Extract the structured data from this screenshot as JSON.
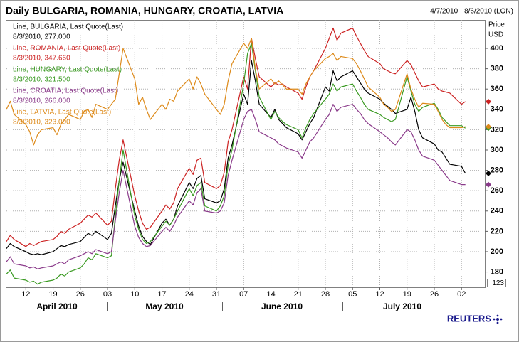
{
  "chart_data": {
    "type": "line",
    "title": "Daily BULGARIA, ROMANIA, HUNGARY, CROATIA, LATVIA",
    "subtitle": "4/7/2010 - 8/6/2010 (LON)",
    "y_axis_label": [
      "Price",
      "USD"
    ],
    "month_labels": [
      "April 2010",
      "May 2010",
      "June 2010",
      "July 2010"
    ],
    "badge": "123",
    "brand": "REUTERS",
    "grid": true,
    "xlim": [
      "2010-04-07",
      "2010-08-08"
    ],
    "ylim": [
      165,
      428
    ],
    "yticks": [
      180,
      200,
      220,
      240,
      260,
      280,
      300,
      320,
      340,
      360,
      380,
      400
    ],
    "xticks": [
      {
        "value": "2010-04-12",
        "label": "12"
      },
      {
        "value": "2010-04-19",
        "label": "19"
      },
      {
        "value": "2010-04-26",
        "label": "26"
      },
      {
        "value": "2010-05-03",
        "label": "03"
      },
      {
        "value": "2010-05-10",
        "label": "10"
      },
      {
        "value": "2010-05-17",
        "label": "17"
      },
      {
        "value": "2010-05-24",
        "label": "24"
      },
      {
        "value": "2010-05-31",
        "label": "31"
      },
      {
        "value": "2010-06-07",
        "label": "07"
      },
      {
        "value": "2010-06-14",
        "label": "14"
      },
      {
        "value": "2010-06-21",
        "label": "21"
      },
      {
        "value": "2010-06-28",
        "label": "28"
      },
      {
        "value": "2010-07-05",
        "label": "05"
      },
      {
        "value": "2010-07-12",
        "label": "12"
      },
      {
        "value": "2010-07-19",
        "label": "19"
      },
      {
        "value": "2010-07-26",
        "label": "26"
      },
      {
        "value": "2010-08-02",
        "label": "02"
      }
    ],
    "x": [
      "2010-04-07",
      "2010-04-08",
      "2010-04-09",
      "2010-04-12",
      "2010-04-13",
      "2010-04-14",
      "2010-04-15",
      "2010-04-16",
      "2010-04-19",
      "2010-04-20",
      "2010-04-21",
      "2010-04-22",
      "2010-04-23",
      "2010-04-26",
      "2010-04-27",
      "2010-04-28",
      "2010-04-29",
      "2010-04-30",
      "2010-05-03",
      "2010-05-04",
      "2010-05-05",
      "2010-05-06",
      "2010-05-07",
      "2010-05-10",
      "2010-05-11",
      "2010-05-12",
      "2010-05-13",
      "2010-05-14",
      "2010-05-17",
      "2010-05-18",
      "2010-05-19",
      "2010-05-20",
      "2010-05-21",
      "2010-05-24",
      "2010-05-25",
      "2010-05-26",
      "2010-05-27",
      "2010-05-28",
      "2010-05-31",
      "2010-06-01",
      "2010-06-02",
      "2010-06-03",
      "2010-06-04",
      "2010-06-07",
      "2010-06-08",
      "2010-06-09",
      "2010-06-10",
      "2010-06-11",
      "2010-06-14",
      "2010-06-15",
      "2010-06-16",
      "2010-06-17",
      "2010-06-18",
      "2010-06-21",
      "2010-06-22",
      "2010-06-23",
      "2010-06-24",
      "2010-06-25",
      "2010-06-28",
      "2010-06-29",
      "2010-06-30",
      "2010-07-01",
      "2010-07-02",
      "2010-07-05",
      "2010-07-06",
      "2010-07-07",
      "2010-07-08",
      "2010-07-09",
      "2010-07-12",
      "2010-07-13",
      "2010-07-14",
      "2010-07-15",
      "2010-07-16",
      "2010-07-19",
      "2010-07-20",
      "2010-07-21",
      "2010-07-22",
      "2010-07-23",
      "2010-07-26",
      "2010-07-27",
      "2010-07-28",
      "2010-07-29",
      "2010-07-30",
      "2010-08-02",
      "2010-08-03"
    ],
    "series": [
      {
        "name": "Line, BULGARIA, Last Quote(Last)",
        "legend_detail": "8/3/2010, 277.000",
        "color": "#000000",
        "values": [
          203,
          208,
          205,
          200,
          198,
          197,
          198,
          197,
          200,
          203,
          206,
          205,
          207,
          210,
          214,
          218,
          216,
          220,
          212,
          218,
          245,
          270,
          288,
          240,
          225,
          215,
          210,
          207,
          228,
          232,
          226,
          232,
          245,
          268,
          262,
          272,
          275,
          252,
          248,
          250,
          262,
          292,
          305,
          355,
          345,
          388,
          368,
          345,
          332,
          340,
          330,
          326,
          322,
          316,
          310,
          318,
          326,
          332,
          362,
          358,
          378,
          368,
          372,
          378,
          372,
          366,
          360,
          356,
          350,
          346,
          343,
          340,
          336,
          340,
          352,
          338,
          320,
          312,
          306,
          300,
          298,
          292,
          286,
          284,
          277
        ]
      },
      {
        "name": "Line, ROMANIA, Last Quote(Last)",
        "legend_detail": "8/3/2010, 347.660",
        "color": "#cc2222",
        "values": [
          210,
          216,
          212,
          205,
          208,
          206,
          208,
          210,
          212,
          215,
          220,
          218,
          222,
          228,
          232,
          236,
          234,
          238,
          226,
          230,
          262,
          290,
          310,
          255,
          240,
          228,
          222,
          224,
          240,
          246,
          242,
          248,
          262,
          282,
          276,
          290,
          292,
          268,
          262,
          265,
          278,
          308,
          320,
          372,
          360,
          410,
          390,
          372,
          362,
          366,
          364,
          365,
          362,
          356,
          350,
          362,
          372,
          378,
          400,
          410,
          420,
          408,
          415,
          420,
          412,
          405,
          398,
          392,
          385,
          380,
          378,
          376,
          375,
          388,
          384,
          376,
          368,
          362,
          365,
          360,
          358,
          357,
          356,
          345,
          347.66
        ]
      },
      {
        "name": "Line, HUNGARY, Last Quote(Last)",
        "legend_detail": "8/3/2010, 321.500",
        "color": "#3a9a22",
        "values": [
          178,
          182,
          174,
          172,
          170,
          171,
          168,
          170,
          172,
          174,
          178,
          176,
          180,
          184,
          188,
          194,
          192,
          198,
          194,
          196,
          235,
          270,
          300,
          235,
          222,
          212,
          208,
          210,
          225,
          230,
          226,
          232,
          240,
          262,
          255,
          265,
          268,
          245,
          240,
          245,
          255,
          285,
          300,
          365,
          395,
          405,
          378,
          352,
          330,
          338,
          332,
          328,
          325,
          320,
          312,
          322,
          330,
          336,
          350,
          355,
          365,
          358,
          362,
          365,
          358,
          352,
          345,
          340,
          335,
          332,
          330,
          328,
          330,
          372,
          358,
          345,
          338,
          342,
          346,
          340,
          332,
          328,
          324,
          324,
          321.5
        ]
      },
      {
        "name": "Line, CROATIA, Last Quote(Last)",
        "legend_detail": "8/3/2010, 266.000",
        "color": "#8a3a8a",
        "values": [
          190,
          195,
          188,
          186,
          184,
          185,
          183,
          184,
          186,
          188,
          190,
          188,
          192,
          196,
          198,
          200,
          198,
          202,
          198,
          200,
          230,
          258,
          280,
          225,
          214,
          208,
          205,
          206,
          220,
          224,
          220,
          226,
          234,
          250,
          246,
          258,
          262,
          240,
          238,
          240,
          248,
          275,
          290,
          330,
          338,
          340,
          330,
          318,
          312,
          310,
          306,
          304,
          302,
          298,
          292,
          300,
          308,
          312,
          330,
          335,
          345,
          338,
          342,
          345,
          340,
          336,
          330,
          326,
          318,
          315,
          312,
          308,
          305,
          320,
          318,
          310,
          300,
          294,
          290,
          285,
          280,
          275,
          270,
          266,
          266
        ]
      },
      {
        "name": "Line, LATVIA, Last Quote(Last)",
        "legend_detail": "8/3/2010, 323.000",
        "color": "#dd8a1a",
        "values": [
          340,
          348,
          335,
          325,
          318,
          305,
          315,
          320,
          322,
          315,
          325,
          330,
          335,
          330,
          338,
          340,
          332,
          345,
          340,
          345,
          350,
          375,
          400,
          370,
          345,
          352,
          340,
          330,
          345,
          340,
          350,
          348,
          358,
          370,
          360,
          372,
          365,
          355,
          340,
          335,
          345,
          368,
          385,
          405,
          400,
          410,
          380,
          360,
          370,
          365,
          368,
          364,
          360,
          360,
          355,
          365,
          372,
          378,
          390,
          392,
          395,
          388,
          392,
          390,
          385,
          378,
          370,
          362,
          352,
          345,
          342,
          338,
          340,
          375,
          360,
          350,
          342,
          346,
          345,
          338,
          330,
          325,
          322,
          322,
          323
        ]
      }
    ]
  }
}
